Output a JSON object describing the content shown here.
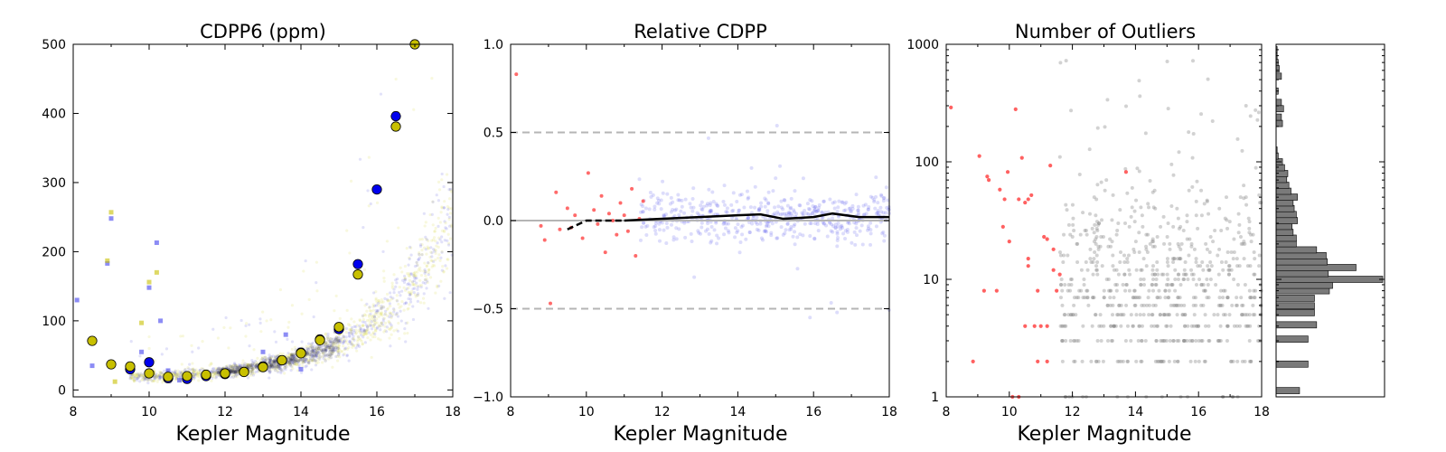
{
  "chart_data": [
    {
      "type": "scatter",
      "title": "CDPP6 (ppm)",
      "xlabel": "Kepler Magnitude",
      "ylabel": "",
      "xlim": [
        8,
        18
      ],
      "ylim": [
        -10,
        500
      ],
      "xticks": [
        "8",
        "10",
        "12",
        "14",
        "16",
        "18"
      ],
      "yticks": [
        "0",
        "100",
        "200",
        "300",
        "400",
        "500"
      ],
      "grid": false,
      "series": [
        {
          "marker": "circle-binned",
          "color": "#0000ee",
          "points": [
            [
              9.5,
              30
            ],
            [
              10,
              40
            ],
            [
              10.5,
              17
            ],
            [
              11,
              16
            ],
            [
              11.5,
              20
            ],
            [
              12,
              23
            ],
            [
              12.5,
              26
            ],
            [
              13,
              34
            ],
            [
              13.5,
              43
            ],
            [
              14,
              54
            ],
            [
              14.5,
              73
            ],
            [
              15,
              88
            ],
            [
              15.5,
              182
            ],
            [
              16,
              290
            ],
            [
              16.5,
              396
            ]
          ]
        },
        {
          "marker": "circle-binned",
          "color": "#c8c000",
          "points": [
            [
              8.5,
              71
            ],
            [
              9,
              37
            ],
            [
              9.5,
              34
            ],
            [
              10,
              24
            ],
            [
              10.5,
              19
            ],
            [
              11,
              20
            ],
            [
              11.5,
              22
            ],
            [
              12,
              24
            ],
            [
              12.5,
              26
            ],
            [
              13,
              33
            ],
            [
              13.5,
              43
            ],
            [
              14,
              53
            ],
            [
              14.5,
              72
            ],
            [
              15,
              91
            ],
            [
              15.5,
              167
            ],
            [
              16.5,
              381
            ],
            [
              17,
              500
            ]
          ]
        },
        {
          "marker": "square-outlier",
          "color": "#4040ee",
          "points": [
            [
              8.1,
              130
            ],
            [
              8.5,
              35
            ],
            [
              8.9,
              183
            ],
            [
              9,
              248
            ],
            [
              9.5,
              30
            ],
            [
              9.8,
              55
            ],
            [
              10,
              148
            ],
            [
              10.2,
              213
            ],
            [
              10.3,
              100
            ],
            [
              10.5,
              28
            ],
            [
              10.8,
              14
            ],
            [
              11,
              20
            ],
            [
              12,
              28
            ],
            [
              13,
              55
            ],
            [
              13.6,
              80
            ],
            [
              14,
              30
            ]
          ]
        },
        {
          "marker": "square-outlier",
          "color": "#c8c000",
          "points": [
            [
              8.9,
              187
            ],
            [
              9,
              257
            ],
            [
              9.1,
              12
            ],
            [
              9.8,
              97
            ],
            [
              10,
              156
            ],
            [
              10.2,
              170
            ],
            [
              10.1,
              25
            ]
          ]
        }
      ]
    },
    {
      "type": "scatter",
      "title": "Relative CDPP",
      "xlabel": "",
      "ylabel": "",
      "xlim": [
        8,
        18
      ],
      "ylim": [
        -1.0,
        1.0
      ],
      "xticks": [
        "8",
        "10",
        "12",
        "14",
        "16",
        "18"
      ],
      "yticks": [
        "1.0",
        "0.5",
        "0.0",
        "−0.5",
        "−1.0"
      ],
      "grid": false,
      "reference_lines": [
        0.5,
        0.0,
        -0.5
      ],
      "series": [
        {
          "marker": "red-points",
          "color": "#ff5050",
          "points": [
            [
              8.15,
              0.83
            ],
            [
              8.8,
              -0.03
            ],
            [
              8.9,
              -0.11
            ],
            [
              9.05,
              -0.47
            ],
            [
              9.2,
              0.16
            ],
            [
              9.3,
              -0.05
            ],
            [
              9.5,
              0.07
            ],
            [
              9.6,
              -0.04
            ],
            [
              9.7,
              0.03
            ],
            [
              9.9,
              -0.1
            ],
            [
              10.05,
              0.27
            ],
            [
              10.2,
              0.06
            ],
            [
              10.3,
              -0.02
            ],
            [
              10.4,
              0.14
            ],
            [
              10.5,
              -0.18
            ],
            [
              10.6,
              0.04
            ],
            [
              10.8,
              -0.08
            ],
            [
              10.9,
              0.1
            ],
            [
              11.0,
              0.03
            ],
            [
              11.1,
              -0.06
            ],
            [
              11.2,
              0.18
            ],
            [
              11.3,
              -0.2
            ],
            [
              11.4,
              0.01
            ],
            [
              11.5,
              0.11
            ],
            [
              10.7,
              0.0
            ]
          ]
        },
        {
          "marker": "trend",
          "color": "#000000",
          "points": [
            [
              9.5,
              -0.05
            ],
            [
              10,
              0.0
            ],
            [
              11,
              0.0
            ],
            [
              12,
              0.01
            ],
            [
              13,
              0.02
            ],
            [
              14,
              0.03
            ],
            [
              14.6,
              0.035
            ],
            [
              15.2,
              0.01
            ],
            [
              16,
              0.02
            ],
            [
              16.5,
              0.04
            ],
            [
              17.2,
              0.02
            ],
            [
              18,
              0.02
            ]
          ]
        }
      ]
    },
    {
      "type": "scatter",
      "title": "Number of Outliers",
      "xlabel": "Kepler Magnitude",
      "ylabel": "",
      "xlim": [
        8,
        18
      ],
      "yscale": "log",
      "ylim": [
        1,
        1000
      ],
      "xticks": [
        "8",
        "10",
        "12",
        "14",
        "16",
        "18"
      ],
      "yticks": [
        "1",
        "10",
        "100",
        "1000"
      ],
      "grid": false,
      "series": [
        {
          "marker": "red-points",
          "color": "#ff5050",
          "points": [
            [
              8.15,
              290
            ],
            [
              8.85,
              2
            ],
            [
              9.05,
              112
            ],
            [
              9.3,
              75
            ],
            [
              9.35,
              70
            ],
            [
              9.2,
              8
            ],
            [
              9.6,
              8
            ],
            [
              9.7,
              58
            ],
            [
              9.85,
              48
            ],
            [
              9.95,
              82
            ],
            [
              9.8,
              28
            ],
            [
              10.0,
              21
            ],
            [
              10.2,
              280
            ],
            [
              10.3,
              48
            ],
            [
              10.4,
              108
            ],
            [
              10.5,
              45
            ],
            [
              10.6,
              48
            ],
            [
              10.7,
              52
            ],
            [
              10.6,
              15
            ],
            [
              10.6,
              13
            ],
            [
              10.5,
              4
            ],
            [
              10.8,
              4
            ],
            [
              11.0,
              4
            ],
            [
              11.2,
              4
            ],
            [
              11.1,
              23
            ],
            [
              11.2,
              22
            ],
            [
              11.4,
              18
            ],
            [
              11.4,
              12
            ],
            [
              11.3,
              93
            ],
            [
              11.6,
              11
            ],
            [
              11.5,
              8
            ],
            [
              10.1,
              1
            ],
            [
              10.3,
              1
            ],
            [
              10.9,
              8
            ],
            [
              10.9,
              2
            ],
            [
              11.2,
              2
            ],
            [
              13.7,
              82
            ]
          ]
        }
      ]
    },
    {
      "type": "bar",
      "title": "",
      "orientation": "horizontal",
      "yscale": "log",
      "ylim": [
        1,
        1000
      ],
      "values": [
        [
          1.13,
          0.22
        ],
        [
          1.9,
          0.3
        ],
        [
          3.1,
          0.3
        ],
        [
          4.1,
          0.38
        ],
        [
          5.2,
          0.36
        ],
        [
          5.95,
          0.36
        ],
        [
          6.9,
          0.36
        ],
        [
          8.0,
          0.5
        ],
        [
          8.9,
          0.53
        ],
        [
          10.0,
          1.0
        ],
        [
          11.2,
          0.49
        ],
        [
          12.6,
          0.75
        ],
        [
          14.1,
          0.48
        ],
        [
          15.9,
          0.47
        ],
        [
          17.8,
          0.38
        ],
        [
          20.1,
          0.19
        ],
        [
          22.4,
          0.19
        ],
        [
          25.1,
          0.16
        ],
        [
          28.2,
          0.15
        ],
        [
          31.6,
          0.2
        ],
        [
          35.6,
          0.19
        ],
        [
          40.0,
          0.17
        ],
        [
          44.7,
          0.16
        ],
        [
          50.1,
          0.2
        ],
        [
          56.2,
          0.14
        ],
        [
          63.1,
          0.12
        ],
        [
          70.8,
          0.1
        ],
        [
          79.5,
          0.11
        ],
        [
          89.1,
          0.08
        ],
        [
          100.0,
          0.06
        ],
        [
          112,
          0.02
        ],
        [
          126,
          0.01
        ],
        [
          212,
          0.06
        ],
        [
          240,
          0.05
        ],
        [
          283,
          0.07
        ],
        [
          320,
          0.05
        ],
        [
          400,
          0.02
        ],
        [
          535,
          0.05
        ],
        [
          620,
          0.03
        ],
        [
          700,
          0.02
        ],
        [
          790,
          0.01
        ],
        [
          900,
          0.01
        ]
      ]
    }
  ]
}
